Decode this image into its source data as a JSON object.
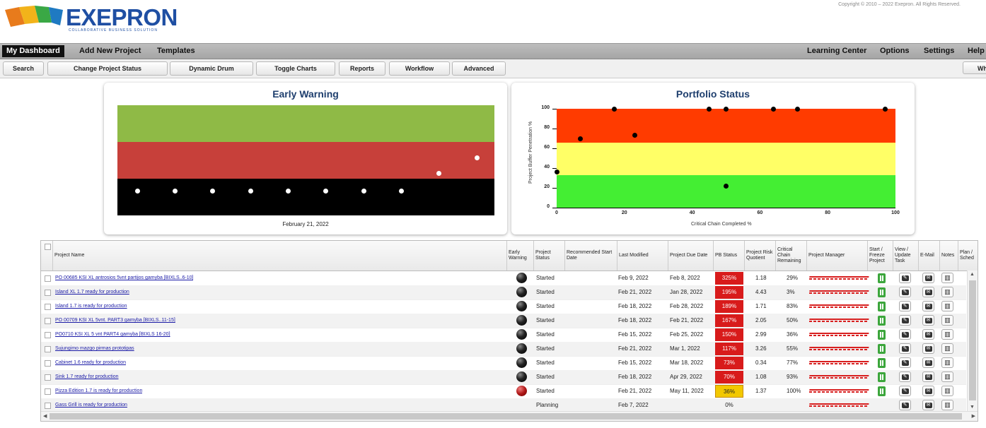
{
  "brand": {
    "name": "EXEPRON",
    "tagline": "COLLABORATIVE BUSINESS SOLUTION",
    "copyright": "Copyright © 2010 – 2022 Exepron.  All Rights Reserved."
  },
  "menu": {
    "left": [
      "My Dashboard",
      "Add New Project",
      "Templates"
    ],
    "right": [
      "Learning Center",
      "Options",
      "Settings",
      "Help"
    ]
  },
  "toolbar": [
    "Search",
    "Change Project Status",
    "Dynamic Drum",
    "Toggle Charts",
    "Reports",
    "Workflow",
    "Advanced",
    "Wh"
  ],
  "early_warning": {
    "title": "Early Warning",
    "date": "February 21, 2022",
    "colors": {
      "top": "#8fba46",
      "middle": "#c7403a",
      "bottom": "#000000"
    }
  },
  "portfolio": {
    "title": "Portfolio Status",
    "xlabel": "Critical Chain Completed %",
    "ylabel": "Project Buffer Penetration %",
    "colors": {
      "red": "#ff3b00",
      "yellow": "#ffff66",
      "green": "#44ee33"
    }
  },
  "chart_data": [
    {
      "type": "scatter",
      "title": "Early Warning",
      "xlabel": "February 21, 2022",
      "points_note": "",
      "series": [
        {
          "values": [
            0.22,
            0.22,
            0.22,
            0.22,
            0.22,
            0.22,
            0.22,
            0.22,
            0.38,
            0.52
          ]
        }
      ]
    },
    {
      "type": "scatter",
      "title": "Portfolio Status",
      "xlabel": "Critical Chain Completed %",
      "ylabel": "Project Buffer Penetration %",
      "xlim": [
        0,
        100
      ],
      "ylim": [
        0,
        100
      ],
      "x_ticks": [
        "0",
        "20",
        "40",
        "60",
        "80",
        "100"
      ],
      "y_ticks": [
        "0",
        "20",
        "40",
        "60",
        "80",
        "100"
      ],
      "x": [
        0,
        7,
        17,
        23,
        45,
        50,
        50,
        64,
        71,
        97
      ],
      "y": [
        36,
        70,
        100,
        73,
        100,
        100,
        22,
        100,
        100,
        100
      ]
    }
  ],
  "table": {
    "headers": [
      "Project Name",
      "Early Warning",
      "Project Status",
      "Recommended Start Date",
      "Last Modified",
      "Project Due Date",
      "PB Status",
      "Project Risk Quotient",
      "Critical Chain Remaining",
      "Project Manager",
      "Start / Freeze Project",
      "View / Update Task",
      "E-Mail",
      "Notes",
      "Plan / Sched"
    ],
    "rows": [
      {
        "name": "PO 00685 KSI XL antrosios 5vnt partijos gamyba [BIXLS..6-10]",
        "warn": "black",
        "status": "Started",
        "modified": "Feb 9, 2022",
        "due": "Feb 8, 2022",
        "pb": "325%",
        "pbc": "red",
        "risk": "1.18",
        "ccr": "29%"
      },
      {
        "name": "Island XL 1.7 ready for production",
        "warn": "black",
        "status": "Started",
        "modified": "Feb 21, 2022",
        "due": "Jan 28, 2022",
        "pb": "195%",
        "pbc": "red",
        "risk": "4.43",
        "ccr": "3%"
      },
      {
        "name": "Island 1.7 is ready for production",
        "warn": "black",
        "status": "Started",
        "modified": "Feb 18, 2022",
        "due": "Feb 28, 2022",
        "pb": "189%",
        "pbc": "red",
        "risk": "1.71",
        "ccr": "83%"
      },
      {
        "name": "PO 00709 KSI XL 5vnt. PART3 gamyba [BIXLS..11-15]",
        "warn": "black",
        "status": "Started",
        "modified": "Feb 18, 2022",
        "due": "Feb 21, 2022",
        "pb": "167%",
        "pbc": "red",
        "risk": "2.05",
        "ccr": "50%"
      },
      {
        "name": "PO0710 KSI XL 5 vnt PART4 gamyba [BIXLS 16-20]",
        "warn": "black",
        "status": "Started",
        "modified": "Feb 15, 2022",
        "due": "Feb 25, 2022",
        "pb": "150%",
        "pbc": "red",
        "risk": "2.99",
        "ccr": "36%"
      },
      {
        "name": "Sujungimo mazgo pirmas prototipas",
        "warn": "black",
        "status": "Started",
        "modified": "Feb 21, 2022",
        "due": "Mar 1, 2022",
        "pb": "117%",
        "pbc": "red",
        "risk": "3.26",
        "ccr": "55%"
      },
      {
        "name": "Cabinet 1.6 ready for production",
        "warn": "black",
        "status": "Started",
        "modified": "Feb 15, 2022",
        "due": "Mar 18, 2022",
        "pb": "73%",
        "pbc": "red",
        "risk": "0.34",
        "ccr": "77%"
      },
      {
        "name": "Sink 1.7 ready for production",
        "warn": "black",
        "status": "Started",
        "modified": "Feb 18, 2022",
        "due": "Apr 29, 2022",
        "pb": "70%",
        "pbc": "red",
        "risk": "1.08",
        "ccr": "93%"
      },
      {
        "name": "Pizza Edition 1.7 is ready for production",
        "warn": "red",
        "status": "Started",
        "modified": "Feb 21, 2022",
        "due": "May 11, 2022",
        "pb": "36%",
        "pbc": "yellow",
        "risk": "1.37",
        "ccr": "100%"
      },
      {
        "name": "Gass Grill is ready for production",
        "warn": "none",
        "status": "Planning",
        "modified": "Feb 7, 2022",
        "due": "",
        "pb": "0%",
        "pbc": "none",
        "risk": "",
        "ccr": ""
      }
    ]
  }
}
